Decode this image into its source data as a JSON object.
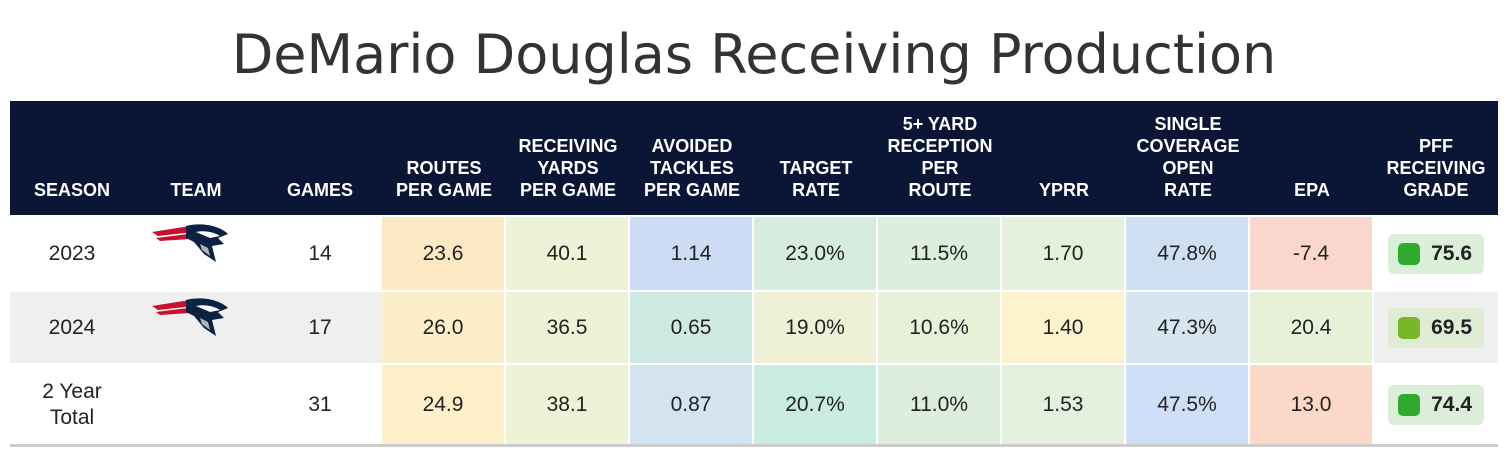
{
  "chart_data": {
    "type": "table",
    "title": "DeMario Douglas Receiving Production",
    "columns": [
      "SEASON",
      "TEAM",
      "GAMES",
      "ROUTES\nPER GAME",
      "RECEIVING\nYARDS\nPER GAME",
      "AVOIDED\nTACKLES\nPER GAME",
      "TARGET\nRATE",
      "5+ YARD\nRECEPTION\nPER\nROUTE",
      "YPRR",
      "SINGLE\nCOVERAGE\nOPEN\nRATE",
      "EPA",
      "PFF\nRECEIVING\nGRADE"
    ],
    "rows": [
      {
        "season": "2023",
        "team_logo": "patriots-logo-icon",
        "games": "14",
        "routes": "23.6",
        "yards": "40.1",
        "avoided": "1.14",
        "target": "23.0%",
        "five_plus": "11.5%",
        "yprr": "1.70",
        "scor": "47.8%",
        "epa": "-7.4",
        "grade": "75.6"
      },
      {
        "season": "2024",
        "team_logo": "patriots-logo-icon",
        "games": "17",
        "routes": "26.0",
        "yards": "36.5",
        "avoided": "0.65",
        "target": "19.0%",
        "five_plus": "10.6%",
        "yprr": "1.40",
        "scor": "47.3%",
        "epa": "20.4",
        "grade": "69.5"
      },
      {
        "season": "2 Year\nTotal",
        "team_logo": "",
        "games": "31",
        "routes": "24.9",
        "yards": "38.1",
        "avoided": "0.87",
        "target": "20.7%",
        "five_plus": "11.0%",
        "yprr": "1.53",
        "scor": "47.5%",
        "epa": "13.0",
        "grade": "74.4"
      }
    ]
  },
  "colors": {
    "header_bg": "#0b1536",
    "cells": [
      [
        "#ffffff",
        "#ffffff",
        "#ffffff",
        "#fde8c4",
        "#eef2d6",
        "#cddcf5",
        "#d6ecdf",
        "#dbefdc",
        "#e4f1dc",
        "#cfdff2",
        "#fbd6cc",
        "#ffffff"
      ],
      [
        "#efefef",
        "#efefef",
        "#efefef",
        "#fcefc7",
        "#eef2d6",
        "#cde9e2",
        "#eef1d6",
        "#e8f1d8",
        "#fcf2cc",
        "#d6e5ef",
        "#e8f1d8",
        "#efefef"
      ],
      [
        "#ffffff",
        "#ffffff",
        "#ffffff",
        "#fdf0c8",
        "#eef2d6",
        "#d3e3f0",
        "#c9ebe0",
        "#ddeedc",
        "#e2f0dd",
        "#cfdff8",
        "#fcd8c8",
        "#ffffff"
      ]
    ],
    "grade_box": [
      "#daeed8",
      "#deecd3",
      "#daeed8"
    ],
    "grade_dot": [
      "#2eaa2e",
      "#76b82a",
      "#2eaa2e"
    ]
  }
}
